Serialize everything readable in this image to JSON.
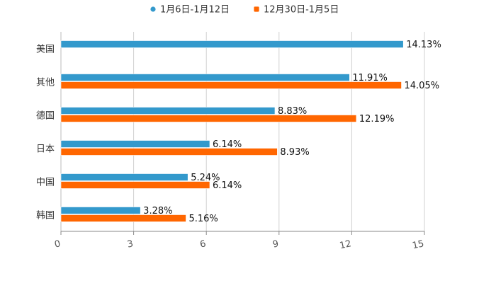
{
  "chart_data": {
    "type": "bar",
    "orientation": "horizontal",
    "categories": [
      "美国",
      "其他",
      "德国",
      "日本",
      "中国",
      "韩国"
    ],
    "series": [
      {
        "name": "1月6日-1月12日",
        "color": "#3399CC",
        "values": [
          14.13,
          11.91,
          8.83,
          6.14,
          5.24,
          3.28
        ],
        "labels": [
          "14.13%",
          "11.91%",
          "8.83%",
          "6.14%",
          "5.24%",
          "3.28%"
        ]
      },
      {
        "name": "12月30日-1月5日",
        "color": "#FF6600",
        "values": [
          null,
          14.05,
          12.19,
          8.93,
          6.14,
          5.16
        ],
        "labels": [
          null,
          "14.05%",
          "12.19%",
          "8.93%",
          "6.14%",
          "5.16%"
        ]
      }
    ],
    "xlim": [
      0,
      15
    ],
    "xticks": [
      0,
      3,
      6,
      9,
      12,
      15
    ],
    "xtick_labels": [
      "0",
      "3",
      "6",
      "9",
      "12",
      "15"
    ],
    "grid": true,
    "legend_position": "top-center"
  }
}
